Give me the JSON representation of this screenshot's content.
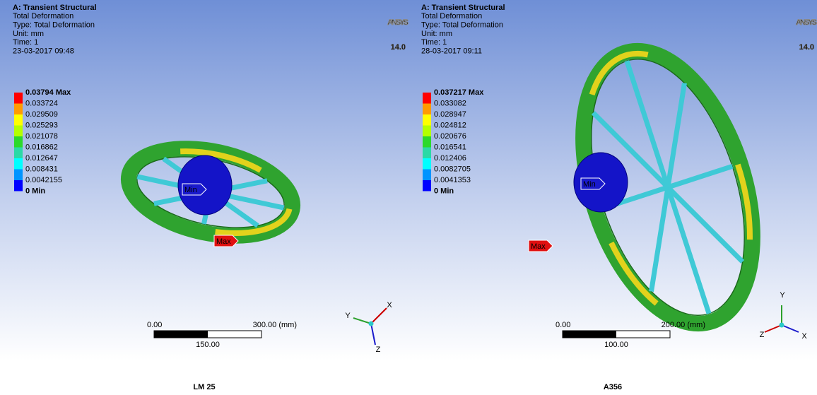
{
  "panels": [
    {
      "header": [
        "A: Transient Structural",
        "Total Deformation",
        "Type: Total Deformation",
        "Unit: mm",
        "Time: 1",
        "23-03-2017 09:48"
      ],
      "logo": {
        "name": "ANSYS",
        "version": "14.0"
      },
      "legend": [
        "0.03794 Max",
        "0.033724",
        "0.029509",
        "0.025293",
        "0.021078",
        "0.016862",
        "0.012647",
        "0.008431",
        "0.0042155",
        "0 Min"
      ],
      "min_tag": "Min",
      "max_tag": "Max",
      "scale": {
        "start": "0.00",
        "end": "300.00 (mm)",
        "mid": "150.00"
      },
      "triad": [
        "Y",
        "X",
        "Z"
      ],
      "caption": "LM 25"
    },
    {
      "header": [
        "A: Transient Structural",
        "Total Deformation",
        "Type: Total Deformation",
        "Unit: mm",
        "Time: 1",
        "28-03-2017 09:11"
      ],
      "logo": {
        "name": "ANSYS",
        "version": "14.0"
      },
      "legend": [
        "0.037217 Max",
        "0.033082",
        "0.028947",
        "0.024812",
        "0.020676",
        "0.016541",
        "0.012406",
        "0.0082705",
        "0.0041353",
        "0 Min"
      ],
      "min_tag": "Min",
      "max_tag": "Max",
      "scale": {
        "start": "0.00",
        "end": "200.00 (mm)",
        "mid": "100.00"
      },
      "triad": [
        "Y",
        "Z",
        "X"
      ],
      "caption": "A356"
    }
  ]
}
